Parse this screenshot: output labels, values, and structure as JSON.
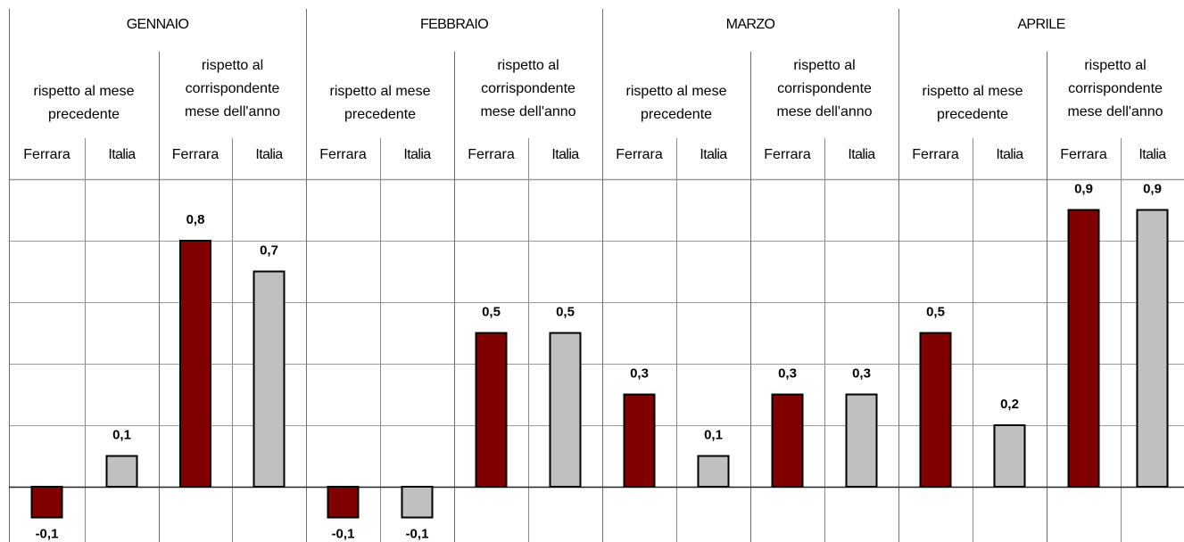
{
  "chart_data": {
    "type": "bar",
    "months": [
      "GENNAIO",
      "FEBBRAIO",
      "MARZO",
      "APRILE"
    ],
    "comparisons": [
      "rispetto al mese precedente",
      "rispetto al corrispondente mese dell'anno"
    ],
    "comparison_lines": [
      [
        "rispetto al mese",
        "precedente"
      ],
      [
        "rispetto al",
        "corrispondente",
        "mese dell'anno"
      ]
    ],
    "areas": [
      "Ferrara",
      "Italia"
    ],
    "categories": [
      "GENNAIO / rispetto al mese precedente / Ferrara",
      "GENNAIO / rispetto al mese precedente / Italia",
      "GENNAIO / rispetto al corrispondente mese dell'anno / Ferrara",
      "GENNAIO / rispetto al corrispondente mese dell'anno / Italia",
      "FEBBRAIO / rispetto al mese precedente / Ferrara",
      "FEBBRAIO / rispetto al mese precedente / Italia",
      "FEBBRAIO / rispetto al corrispondente mese dell'anno / Ferrara",
      "FEBBRAIO / rispetto al corrispondente mese dell'anno / Italia",
      "MARZO / rispetto al mese precedente / Ferrara",
      "MARZO / rispetto al mese precedente / Italia",
      "MARZO / rispetto al corrispondente mese dell'anno / Ferrara",
      "MARZO / rispetto al corrispondente mese dell'anno / Italia",
      "APRILE / rispetto al mese precedente / Ferrara",
      "APRILE / rispetto al mese precedente / Italia",
      "APRILE / rispetto al corrispondente mese dell'anno / Ferrara",
      "APRILE / rispetto al corrispondente mese dell'anno / Italia"
    ],
    "values": [
      -0.1,
      0.1,
      0.8,
      0.7,
      -0.1,
      -0.1,
      0.5,
      0.5,
      0.3,
      0.1,
      0.3,
      0.3,
      0.5,
      0.2,
      0.9,
      0.9
    ],
    "value_labels": [
      "-0,1",
      "0,1",
      "0,8",
      "0,7",
      "-0,1",
      "-0,1",
      "0,5",
      "0,5",
      "0,3",
      "0,1",
      "0,3",
      "0,3",
      "0,5",
      "0,2",
      "0,9",
      "0,9"
    ],
    "ylim": [
      -0.17,
      1.05
    ],
    "y_gridlines": [
      0.0,
      0.2,
      0.4,
      0.6,
      0.8,
      1.0
    ],
    "grid": true,
    "colors": {
      "Ferrara": "#800000",
      "Italia": "#c0c0c0"
    }
  }
}
